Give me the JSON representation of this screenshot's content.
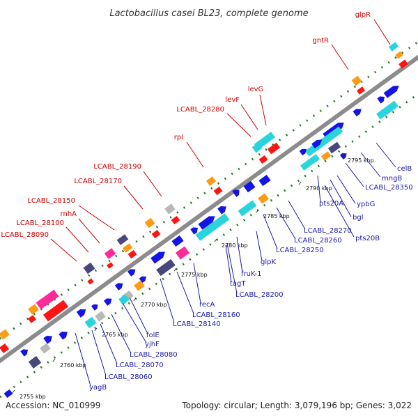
{
  "title": "Lactobacillus casei BL23, complete genome",
  "footer": {
    "accession": "Accession: NC_010999",
    "summary": "Topology: circular; Length: 3,079,196 bp; Genes: 3,022"
  },
  "colors": {
    "backbone": "#8c8c8c",
    "dots": "#1f7a1f",
    "upper_labels": "#cc0000",
    "lower_labels": "#1a1aa8",
    "feature_blue": "#1414e6",
    "feature_cyan": "#2ad4dc",
    "feature_magenta": "#ff2a9a",
    "feature_red": "#ff1414",
    "feature_orange": "#ff9a14",
    "feature_gray": "#b8b8b8",
    "feature_slate": "#48487a"
  },
  "ticks": [
    "2755 kbp",
    "2760 kbp",
    "2765 kbp",
    "2770 kbp",
    "2775 kbp",
    "2780 kbp",
    "2785 kbp",
    "2790 kbp",
    "2795 kbp"
  ],
  "upper_labels": [
    "glpR",
    "gntR",
    "levG",
    "levF",
    "LCABL_28280",
    "rpl",
    "LCABL_28190",
    "LCABL_28170",
    "LCABL_28150",
    "rnhA",
    "LCABL_28100",
    "LCABL_28090"
  ],
  "lower_labels": [
    "celB",
    "mngB",
    "LCABL_28350",
    "ypbG",
    "bgl",
    "pts20B",
    "pts20A",
    "LCABL_28270",
    "LCABL_28260",
    "LCABL_28250",
    "glpK",
    "fruK-1",
    "LCABL_28200",
    "tagT",
    "recA",
    "LCABL_28160",
    "LCABL_28140",
    "folE",
    "yjhF",
    "LCABL_28080",
    "LCABL_28070",
    "LCABL_28060",
    "yagB"
  ]
}
